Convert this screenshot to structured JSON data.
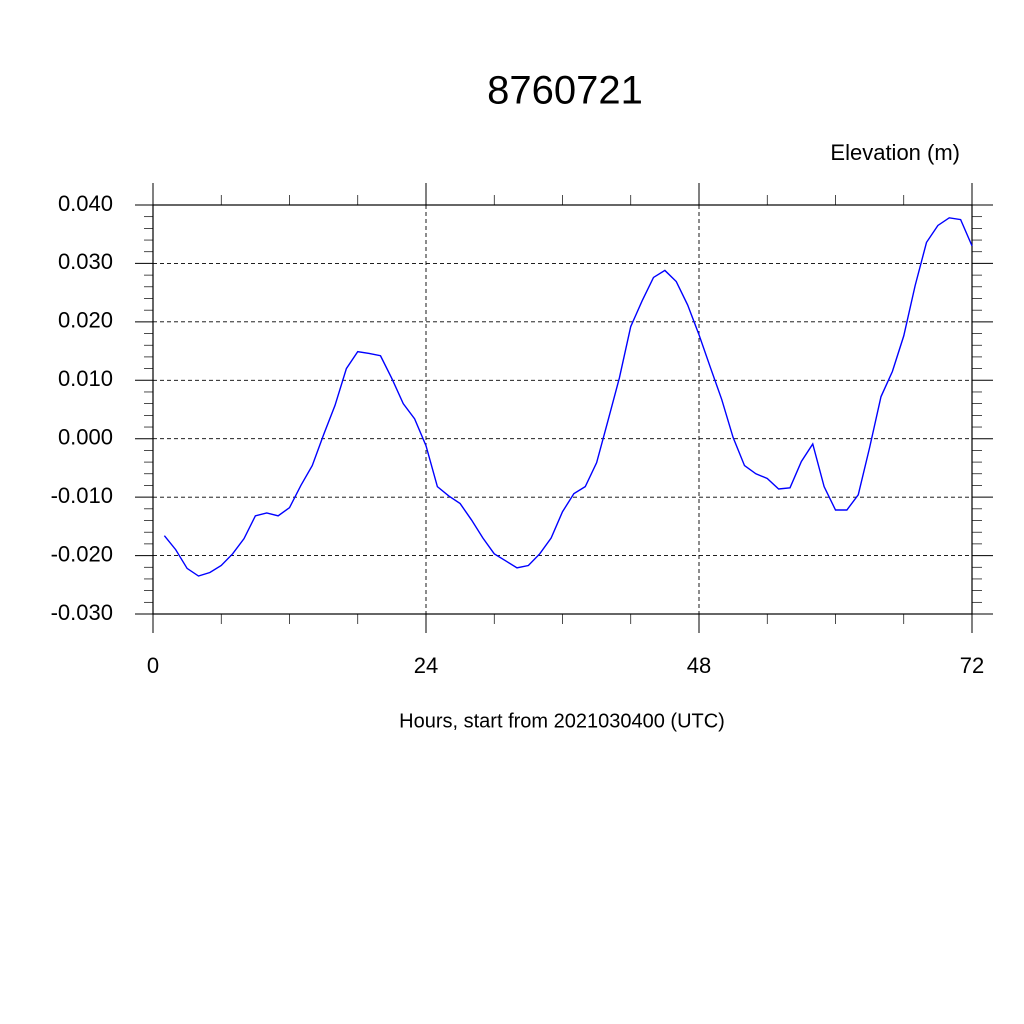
{
  "chart_data": {
    "type": "line",
    "title": "8760721",
    "y_label": "Elevation (m)",
    "x_label": "Hours, start from 2021030400 (UTC)",
    "x": [
      1,
      2,
      3,
      4,
      5,
      6,
      7,
      8,
      9,
      10,
      11,
      12,
      13,
      14,
      15,
      16,
      17,
      18,
      19,
      20,
      21,
      22,
      23,
      24,
      25,
      26,
      27,
      28,
      29,
      30,
      31,
      32,
      33,
      34,
      35,
      36,
      37,
      38,
      39,
      40,
      41,
      42,
      43,
      44,
      45,
      46,
      47,
      48,
      49,
      50,
      51,
      52,
      53,
      54,
      55,
      56,
      57,
      58,
      59,
      60,
      61,
      62,
      63,
      64,
      65,
      66,
      67,
      68,
      69,
      70,
      71,
      72
    ],
    "series": [
      {
        "color": "#0000ff",
        "values": [
          -0.0166,
          -0.019,
          -0.0222,
          -0.0235,
          -0.0229,
          -0.0217,
          -0.0197,
          -0.0171,
          -0.0132,
          -0.0127,
          -0.0132,
          -0.0118,
          -0.008,
          -0.0046,
          0.0007,
          0.0057,
          0.012,
          0.0149,
          0.0146,
          0.0142,
          0.0103,
          0.006,
          0.0034,
          -0.0012,
          -0.0082,
          -0.0098,
          -0.0111,
          -0.0139,
          -0.017,
          -0.0197,
          -0.0209,
          -0.0221,
          -0.0217,
          -0.0197,
          -0.017,
          -0.0125,
          -0.0094,
          -0.0082,
          -0.0041,
          0.0031,
          0.0104,
          0.0192,
          0.0236,
          0.0276,
          0.0288,
          0.0269,
          0.0229,
          0.0178,
          0.0122,
          0.0067,
          0.0002,
          -0.0046,
          -0.006,
          -0.0068,
          -0.0086,
          -0.0084,
          -0.0039,
          -0.0009,
          -0.0082,
          -0.0122,
          -0.0122,
          -0.0096,
          -0.0015,
          0.0072,
          0.0115,
          0.0176,
          0.0262,
          0.0336,
          0.0365,
          0.0378,
          0.0375,
          0.033
        ]
      }
    ],
    "xlim": [
      0,
      72
    ],
    "xticks": [
      0,
      24,
      48,
      72
    ],
    "xminorticks": [
      6,
      12,
      18,
      30,
      36,
      42,
      54,
      60,
      66
    ],
    "ylim": [
      -0.03,
      0.04
    ],
    "yticks": [
      {
        "value": -0.03,
        "label": "-0.030"
      },
      {
        "value": -0.02,
        "label": "-0.020"
      },
      {
        "value": -0.01,
        "label": "-0.010"
      },
      {
        "value": 0,
        "label": "0.000"
      },
      {
        "value": 0.01,
        "label": "0.010"
      },
      {
        "value": 0.02,
        "label": "0.020"
      },
      {
        "value": 0.03,
        "label": "0.030"
      },
      {
        "value": 0.04,
        "label": "0.040"
      }
    ],
    "yminorticks": [
      -0.028,
      -0.026,
      -0.024,
      -0.022,
      -0.018,
      -0.016,
      -0.014,
      -0.012,
      -0.008,
      -0.006,
      -0.004,
      -0.002,
      0.002,
      0.004,
      0.006,
      0.008,
      0.012,
      0.014,
      0.016,
      0.018,
      0.022,
      0.024,
      0.026,
      0.028,
      0.032,
      0.034,
      0.036,
      0.038
    ],
    "grid": true
  }
}
